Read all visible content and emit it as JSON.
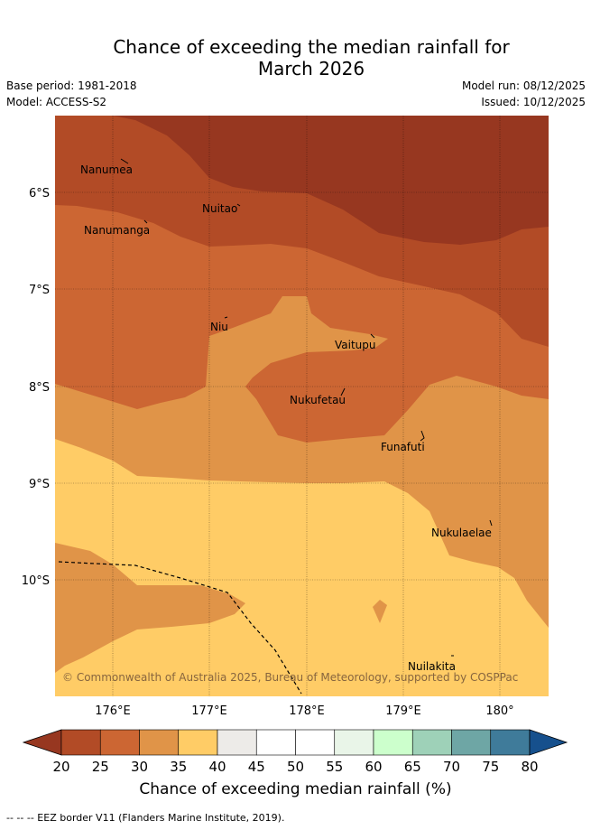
{
  "title_line1": "Chance of exceeding the median rainfall for",
  "title_line2": "March 2026",
  "base_period": "Base period: 1981-2018",
  "model": "Model: ACCESS-S2",
  "model_run": "Model run: 08/12/2025",
  "issued": "Issued: 10/12/2025",
  "places": [
    {
      "name": "Nanumea"
    },
    {
      "name": "Nuitao"
    },
    {
      "name": "Nanumanga"
    },
    {
      "name": "Niu"
    },
    {
      "name": "Vaitupu"
    },
    {
      "name": "Nukufetau"
    },
    {
      "name": "Funafuti"
    },
    {
      "name": "Nukulaelae"
    },
    {
      "name": "Nuilakita"
    }
  ],
  "lat_ticks": [
    "6°S",
    "7°S",
    "8°S",
    "9°S",
    "10°S"
  ],
  "lon_ticks": [
    "176°E",
    "177°E",
    "178°E",
    "179°E",
    "180°"
  ],
  "copyright": "© Commonwealth of Australia 2025, Bureau of Meteorology, supported by COSPPac",
  "colorbar": {
    "ticks": [
      "20",
      "25",
      "30",
      "35",
      "40",
      "45",
      "50",
      "55",
      "60",
      "65",
      "70",
      "75",
      "80"
    ],
    "title": "Chance of exceeding median rainfall (%)",
    "colors": [
      "#973720",
      "#b24b26",
      "#cc6633",
      "#e09448",
      "#ffcc66",
      "#edebe8",
      "#ffffff",
      "#ffffff",
      "#e9f5e8",
      "#ccffcc",
      "#9ed1b8",
      "#6ea6a5",
      "#3f7b9a",
      "#16508d"
    ]
  },
  "footer": "--  --  -- EEZ border V11 (Flanders Marine Institute, 2019)."
}
